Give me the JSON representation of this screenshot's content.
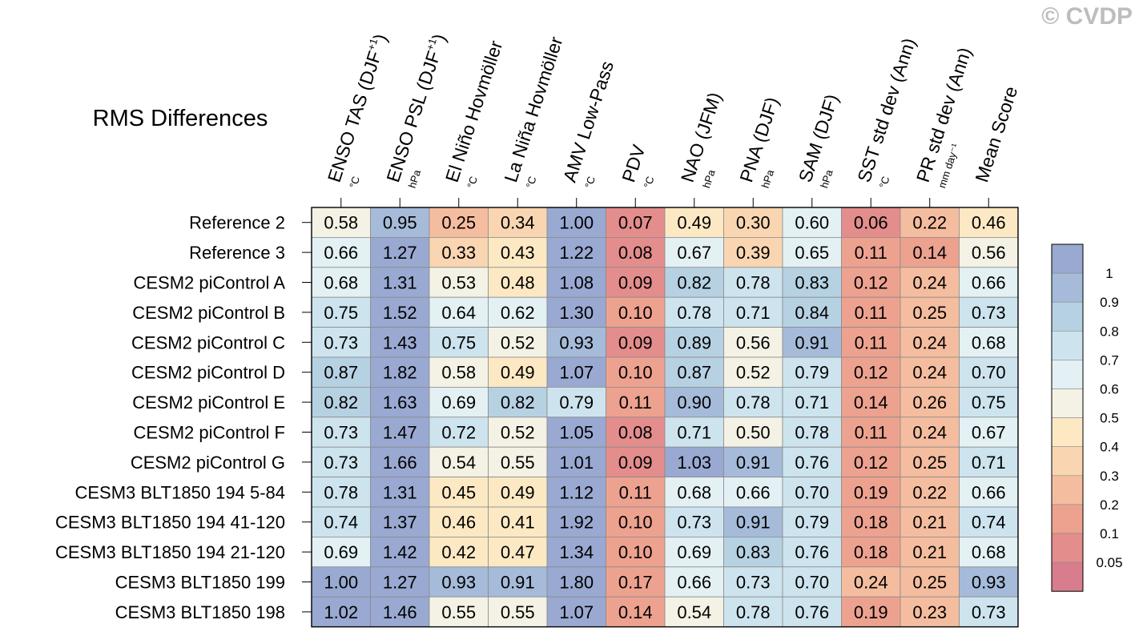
{
  "watermark": "© CVDP",
  "chart_data": {
    "type": "heatmap",
    "title": "RMS Differences",
    "columns": [
      {
        "label": "ENSO TAS (DJF",
        "sup": "+1",
        "unit": "°C"
      },
      {
        "label": "ENSO PSL (DJF",
        "sup": "+1",
        "unit": "hPa"
      },
      {
        "label": "El Niño Hovmöller",
        "sup": "",
        "unit": "°C"
      },
      {
        "label": "La Niña Hovmöller",
        "sup": "",
        "unit": "°C"
      },
      {
        "label": "AMV Low-Pass",
        "sup": "",
        "unit": "°C"
      },
      {
        "label": "PDV",
        "sup": "",
        "unit": "°C"
      },
      {
        "label": "NAO (JFM)",
        "sup": "",
        "unit": "hPa"
      },
      {
        "label": "PNA (DJF)",
        "sup": "",
        "unit": "hPa"
      },
      {
        "label": "SAM (DJF)",
        "sup": "",
        "unit": "hPa"
      },
      {
        "label": "SST std dev (Ann)",
        "sup": "",
        "unit": "°C"
      },
      {
        "label": "PR std dev (Ann)",
        "sup": "",
        "unit": "mm day⁻¹"
      },
      {
        "label": "Mean Score",
        "sup": "",
        "unit": ""
      }
    ],
    "rows": [
      {
        "name": "Reference 2",
        "values": [
          "0.58",
          "0.95",
          "0.25",
          "0.34",
          "1.00",
          "0.07",
          "0.49",
          "0.30",
          "0.60",
          "0.06",
          "0.22",
          "0.46"
        ]
      },
      {
        "name": "Reference 3",
        "values": [
          "0.66",
          "1.27",
          "0.33",
          "0.43",
          "1.22",
          "0.08",
          "0.67",
          "0.39",
          "0.65",
          "0.11",
          "0.14",
          "0.56"
        ]
      },
      {
        "name": "CESM2 piControl A",
        "values": [
          "0.68",
          "1.31",
          "0.53",
          "0.48",
          "1.08",
          "0.09",
          "0.82",
          "0.78",
          "0.83",
          "0.12",
          "0.24",
          "0.66"
        ]
      },
      {
        "name": "CESM2 piControl B",
        "values": [
          "0.75",
          "1.52",
          "0.64",
          "0.62",
          "1.30",
          "0.10",
          "0.78",
          "0.71",
          "0.84",
          "0.11",
          "0.25",
          "0.73"
        ]
      },
      {
        "name": "CESM2 piControl C",
        "values": [
          "0.73",
          "1.43",
          "0.75",
          "0.52",
          "0.93",
          "0.09",
          "0.89",
          "0.56",
          "0.91",
          "0.11",
          "0.24",
          "0.68"
        ]
      },
      {
        "name": "CESM2 piControl D",
        "values": [
          "0.87",
          "1.82",
          "0.58",
          "0.49",
          "1.07",
          "0.10",
          "0.87",
          "0.52",
          "0.79",
          "0.12",
          "0.24",
          "0.70"
        ]
      },
      {
        "name": "CESM2 piControl E",
        "values": [
          "0.82",
          "1.63",
          "0.69",
          "0.82",
          "0.79",
          "0.11",
          "0.90",
          "0.78",
          "0.71",
          "0.14",
          "0.26",
          "0.75"
        ]
      },
      {
        "name": "CESM2 piControl F",
        "values": [
          "0.73",
          "1.47",
          "0.72",
          "0.52",
          "1.05",
          "0.08",
          "0.71",
          "0.50",
          "0.78",
          "0.11",
          "0.24",
          "0.67"
        ]
      },
      {
        "name": "CESM2 piControl G",
        "values": [
          "0.73",
          "1.66",
          "0.54",
          "0.55",
          "1.01",
          "0.09",
          "1.03",
          "0.91",
          "0.76",
          "0.12",
          "0.25",
          "0.71"
        ]
      },
      {
        "name": "CESM3 BLT1850 194 5-84",
        "values": [
          "0.78",
          "1.31",
          "0.45",
          "0.49",
          "1.12",
          "0.11",
          "0.68",
          "0.66",
          "0.70",
          "0.19",
          "0.22",
          "0.66"
        ]
      },
      {
        "name": "CESM3 BLT1850 194 41-120",
        "values": [
          "0.74",
          "1.37",
          "0.46",
          "0.41",
          "1.92",
          "0.10",
          "0.73",
          "0.91",
          "0.79",
          "0.18",
          "0.21",
          "0.74"
        ]
      },
      {
        "name": "CESM3 BLT1850 194 21-120",
        "values": [
          "0.69",
          "1.42",
          "0.42",
          "0.47",
          "1.34",
          "0.10",
          "0.69",
          "0.83",
          "0.76",
          "0.18",
          "0.21",
          "0.68"
        ]
      },
      {
        "name": "CESM3 BLT1850 199",
        "values": [
          "1.00",
          "1.27",
          "0.93",
          "0.91",
          "1.80",
          "0.17",
          "0.66",
          "0.73",
          "0.70",
          "0.24",
          "0.25",
          "0.93"
        ]
      },
      {
        "name": "CESM3 BLT1850 198",
        "values": [
          "1.02",
          "1.46",
          "0.55",
          "0.55",
          "1.07",
          "0.14",
          "0.54",
          "0.78",
          "0.76",
          "0.19",
          "0.23",
          "0.73"
        ]
      }
    ],
    "colorbar": {
      "levels": [
        "1",
        "0.9",
        "0.8",
        "0.7",
        "0.6",
        "0.5",
        "0.4",
        "0.3",
        "0.2",
        "0.1",
        "0.05"
      ],
      "thresholds": [
        0.05,
        0.1,
        0.2,
        0.3,
        0.4,
        0.5,
        0.6,
        0.7,
        0.8,
        0.9,
        1.0
      ],
      "colors": [
        "#d87d8e",
        "#e38d8d",
        "#eda290",
        "#f5bd9f",
        "#f9d6b1",
        "#fce9c4",
        "#f4f2e4",
        "#e3f0f4",
        "#cde4ee",
        "#b6d1e2",
        "#a5bbd9",
        "#99a9d1"
      ]
    }
  }
}
